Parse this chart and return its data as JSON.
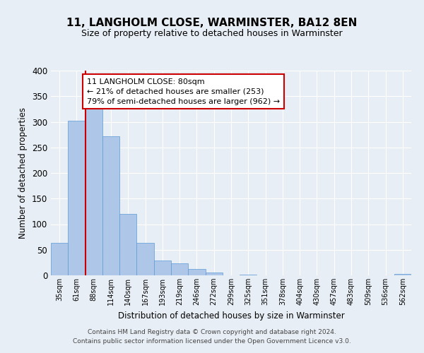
{
  "title": "11, LANGHOLM CLOSE, WARMINSTER, BA12 8EN",
  "subtitle": "Size of property relative to detached houses in Warminster",
  "xlabel": "Distribution of detached houses by size in Warminster",
  "ylabel": "Number of detached properties",
  "bin_labels": [
    "35sqm",
    "61sqm",
    "88sqm",
    "114sqm",
    "140sqm",
    "167sqm",
    "193sqm",
    "219sqm",
    "246sqm",
    "272sqm",
    "299sqm",
    "325sqm",
    "351sqm",
    "378sqm",
    "404sqm",
    "430sqm",
    "457sqm",
    "483sqm",
    "509sqm",
    "536sqm",
    "562sqm"
  ],
  "bar_values": [
    63,
    302,
    330,
    272,
    120,
    64,
    29,
    24,
    13,
    5,
    0,
    2,
    0,
    0,
    0,
    0,
    0,
    0,
    0,
    0,
    3
  ],
  "bar_color": "#aec6e8",
  "bar_edge_color": "#5b9bd5",
  "background_color": "#e8eef5",
  "grid_color": "#ffffff",
  "ylim": [
    0,
    400
  ],
  "yticks": [
    0,
    50,
    100,
    150,
    200,
    250,
    300,
    350,
    400
  ],
  "property_line_x": 1.5,
  "property_line_color": "#cc0000",
  "annotation_text": "11 LANGHOLM CLOSE: 80sqm\n← 21% of detached houses are smaller (253)\n79% of semi-detached houses are larger (962) →",
  "annotation_box_color": "#ffffff",
  "annotation_box_edge": "#cc0000",
  "footer_line1": "Contains HM Land Registry data © Crown copyright and database right 2024.",
  "footer_line2": "Contains public sector information licensed under the Open Government Licence v3.0."
}
